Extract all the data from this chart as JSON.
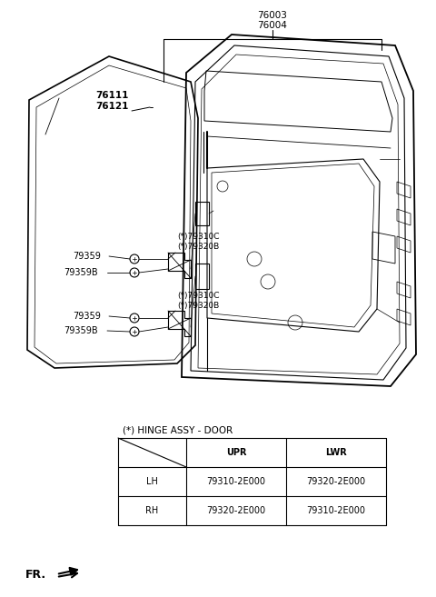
{
  "bg_color": "#ffffff",
  "fig_width": 4.8,
  "fig_height": 6.57,
  "dpi": 100,
  "label_76003": "76003",
  "label_76004": "76004",
  "label_76111": "76111",
  "label_76121": "76121",
  "label_upper_hinge1": "(*)79310C",
  "label_upper_hinge2": "(*)79320B",
  "label_lower_hinge1": "(*)79310C",
  "label_lower_hinge2": "(*)79320B",
  "label_79359_u": "79359",
  "label_79359B_u": "79359B",
  "label_79359_l": "79359",
  "label_79359B_l": "79359B",
  "table_caption": "(*) HINGE ASSY - DOOR",
  "table_header": [
    "",
    "UPR",
    "LWR"
  ],
  "table_rows": [
    [
      "LH",
      "79310-2E000",
      "79320-2E000"
    ],
    [
      "RH",
      "79320-2E000",
      "79310-2E000"
    ]
  ],
  "fr_label": "FR."
}
